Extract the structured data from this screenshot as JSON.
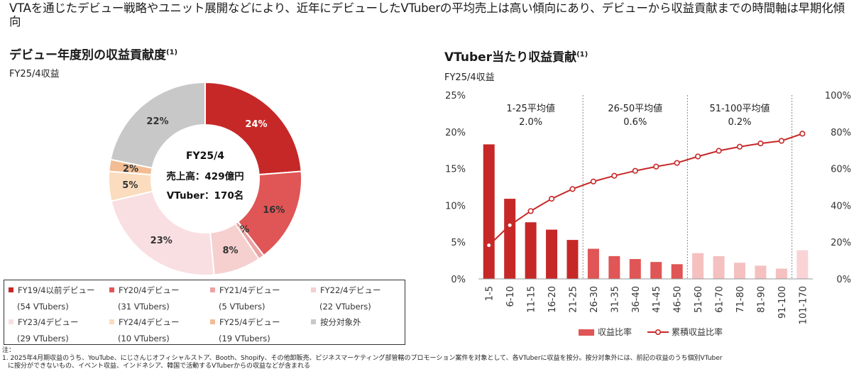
{
  "headline": "VTAを通じたデビュー戦略やユニット展開などにより、近年にデビューしたVTuberの平均売上は高い傾向にあり、デビューから収益貢献までの時間軸は早期化傾向",
  "left_panel": {
    "title": "デビュー年度別の収益貢献度",
    "title_note": "(1)",
    "subtitle": "FY25/4収益",
    "center_line1": "FY25/4",
    "center_line2": "売上高：429億円",
    "center_line3": "VTuber：170名"
  },
  "right_panel": {
    "title": "VTuber当たり収益貢献",
    "title_note": "(1)",
    "subtitle": "FY25/4収益"
  },
  "legend_items": [
    {
      "label": "FY19/4以前デビュー",
      "count": "(54 VTubers)",
      "color": "#c62828"
    },
    {
      "label": "FY20/4デビュー",
      "count": "(31 VTubers)",
      "color": "#e05555"
    },
    {
      "label": "FY21/4デビュー",
      "count": "(5 VTubers)",
      "color": "#eca3a3"
    },
    {
      "label": "FY22/4デビュー",
      "count": "(22 VTubers)",
      "color": "#f6cfcf"
    },
    {
      "label": "FY23/4デビュー",
      "count": "(29 VTubers)",
      "color": "#f9dfe2"
    },
    {
      "label": "FY24/4デビュー",
      "count": "(10 VTubers)",
      "color": "#fbdcbf"
    },
    {
      "label": "FY25/4デビュー",
      "count": "(19 VTubers)",
      "color": "#f2bd94"
    },
    {
      "label": "按分対象外",
      "count": "",
      "color": "#c8c8c8"
    }
  ],
  "chart_data": [
    {
      "type": "pie",
      "variant": "donut",
      "subtitle": "FY25/4収益",
      "slices": [
        {
          "name": "FY19/4以前デビュー",
          "value": 24,
          "label": "24%",
          "color": "#c62828"
        },
        {
          "name": "FY20/4デビュー",
          "value": 16,
          "label": "16%",
          "color": "#e05555"
        },
        {
          "name": "FY21/4デビュー",
          "value": 1,
          "label": "1%",
          "color": "#eca3a3"
        },
        {
          "name": "FY22/4デビュー",
          "value": 8,
          "label": "8%",
          "color": "#f6cfcf"
        },
        {
          "name": "FY23/4デビュー",
          "value": 23,
          "label": "23%",
          "color": "#f9dfe2"
        },
        {
          "name": "FY24/4デビュー",
          "value": 5,
          "label": "5%",
          "color": "#fbdcbf"
        },
        {
          "name": "FY25/4デビュー",
          "value": 2,
          "label": "2%",
          "color": "#f2bd94"
        },
        {
          "name": "按分対象外",
          "value": 22,
          "label": "22%",
          "color": "#c8c8c8"
        }
      ]
    },
    {
      "type": "bar",
      "subtitle": "FY25/4収益",
      "categories": [
        "1-5",
        "6-10",
        "11-15",
        "16-20",
        "21-25",
        "26-30",
        "31-35",
        "36-40",
        "41-45",
        "46-50",
        "51-60",
        "61-70",
        "71-80",
        "81-90",
        "91-100",
        "101-170"
      ],
      "series": [
        {
          "name": "収益比率",
          "type": "bar",
          "axis": "left",
          "values": [
            18.3,
            10.9,
            7.7,
            6.7,
            5.3,
            4.1,
            3.1,
            2.7,
            2.3,
            2.0,
            3.5,
            3.1,
            2.2,
            1.8,
            1.4,
            3.9
          ],
          "colors": [
            "#c62828",
            "#c62828",
            "#c62828",
            "#c62828",
            "#c62828",
            "#e05555",
            "#e05555",
            "#e05555",
            "#e05555",
            "#e05555",
            "#f5c0c0",
            "#f5c0c0",
            "#f5c0c0",
            "#f5c0c0",
            "#f5c0c0",
            "#f9d3d6"
          ]
        },
        {
          "name": "累積収益比率",
          "type": "line",
          "axis": "right",
          "color": "#c62828",
          "values": [
            18.3,
            29.2,
            36.9,
            43.6,
            48.9,
            53.0,
            56.1,
            58.8,
            61.1,
            63.1,
            66.6,
            69.7,
            71.9,
            73.7,
            75.1,
            79.0
          ]
        }
      ],
      "y_left": {
        "ticks": [
          "0%",
          "5%",
          "10%",
          "15%",
          "20%",
          "25%"
        ],
        "ylim": [
          0,
          25
        ]
      },
      "y_right": {
        "ticks": [
          "0%",
          "20%",
          "40%",
          "60%",
          "80%",
          "100%"
        ],
        "ylim": [
          0,
          100
        ]
      },
      "groups": [
        {
          "label": "1-25平均値",
          "value": "2.0%"
        },
        {
          "label": "26-50平均値",
          "value": "0.6%"
        },
        {
          "label": "51-100平均値",
          "value": "0.2%"
        }
      ],
      "legend": [
        "収益比率",
        "累積収益比率"
      ],
      "legend_position": "bottom",
      "grid": false
    }
  ],
  "notes": {
    "heading": "注：",
    "line1": "1. 2025年4月期収益のうち、YouTube、にじさんじオフィシャルストア、Booth、Shopify、その他卸販売、ビジネスマーケティング部管轄のプロモーション案件を対象として、各VTuberに収益を按分。按分対象外には、前記の収益のうち個別VTuber",
    "line2": "に按分ができないもの、イベント収益、インドネシア、韓国で活動するVTuberからの収益などが含まれる"
  }
}
